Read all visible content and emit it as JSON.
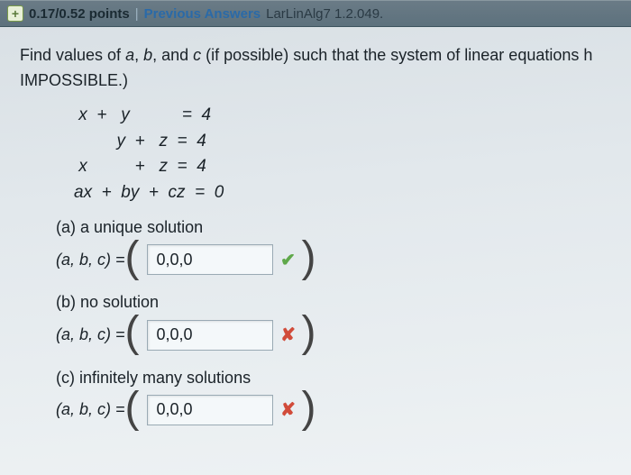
{
  "header": {
    "plus_symbol": "+",
    "points": "0.17/0.52 points",
    "separator": "|",
    "prev_answers": "Previous Answers",
    "reference": "LarLinAlg7 1.2.049."
  },
  "prompt_line1_pre": "Find values of ",
  "prompt_a": "a",
  "prompt_comma1": ", ",
  "prompt_b": "b",
  "prompt_comma2": ", and ",
  "prompt_c": "c",
  "prompt_line1_post": " (if possible) such that the system of linear equations h",
  "impossible": "IMPOSSIBLE.)",
  "equations": {
    "r1": " x  +   y           =  4",
    "r2": "         y  +   z  =  4",
    "r3": " x          +   z  =  4",
    "r4": "ax  +  by  +  cz  =  0"
  },
  "parts": {
    "a": {
      "label": "(a) a unique solution",
      "prefix": "(a, b, c) = ",
      "value": "0,0,0",
      "mark": "check"
    },
    "b": {
      "label": "(b) no solution",
      "prefix": "(a, b, c) = ",
      "value": "0,0,0",
      "mark": "cross"
    },
    "c": {
      "label": "(c) infinitely many solutions",
      "prefix": "(a, b, c) = ",
      "value": "0,0,0",
      "mark": "cross"
    }
  },
  "marks": {
    "check": "✔",
    "cross": "✘"
  }
}
